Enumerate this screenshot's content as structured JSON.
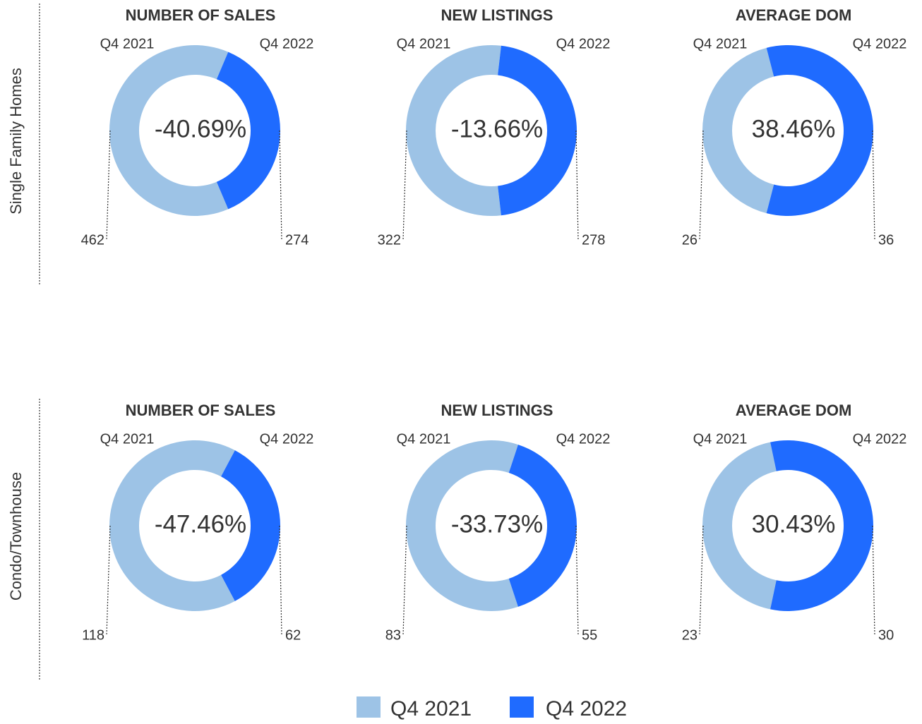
{
  "row_labels": [
    "Single Family Homes",
    "Condo/Townhouse"
  ],
  "chart_data": [
    {
      "type": "donut",
      "title": "NUMBER OF SALES",
      "categories": [
        "Q4 2021",
        "Q4 2022"
      ],
      "values": [
        462,
        274
      ],
      "colors": [
        "#9dc3e6",
        "#1f6bff"
      ],
      "center_label": "-40.69%"
    },
    {
      "type": "donut",
      "title": "NEW LISTINGS",
      "categories": [
        "Q4 2021",
        "Q4 2022"
      ],
      "values": [
        322,
        278
      ],
      "colors": [
        "#9dc3e6",
        "#1f6bff"
      ],
      "center_label": "-13.66%"
    },
    {
      "type": "donut",
      "title": "AVERAGE DOM",
      "categories": [
        "Q4 2021",
        "Q4 2022"
      ],
      "values": [
        26,
        36
      ],
      "colors": [
        "#9dc3e6",
        "#1f6bff"
      ],
      "center_label": "38.46%"
    },
    {
      "type": "donut",
      "title": "NUMBER OF SALES",
      "categories": [
        "Q4 2021",
        "Q4 2022"
      ],
      "values": [
        118,
        62
      ],
      "colors": [
        "#9dc3e6",
        "#1f6bff"
      ],
      "center_label": "-47.46%"
    },
    {
      "type": "donut",
      "title": "NEW LISTINGS",
      "categories": [
        "Q4 2021",
        "Q4 2022"
      ],
      "values": [
        83,
        55
      ],
      "colors": [
        "#9dc3e6",
        "#1f6bff"
      ],
      "center_label": "-33.73%"
    },
    {
      "type": "donut",
      "title": "AVERAGE DOM",
      "categories": [
        "Q4 2021",
        "Q4 2022"
      ],
      "values": [
        23,
        30
      ],
      "colors": [
        "#9dc3e6",
        "#1f6bff"
      ],
      "center_label": "30.43%"
    }
  ]
}
